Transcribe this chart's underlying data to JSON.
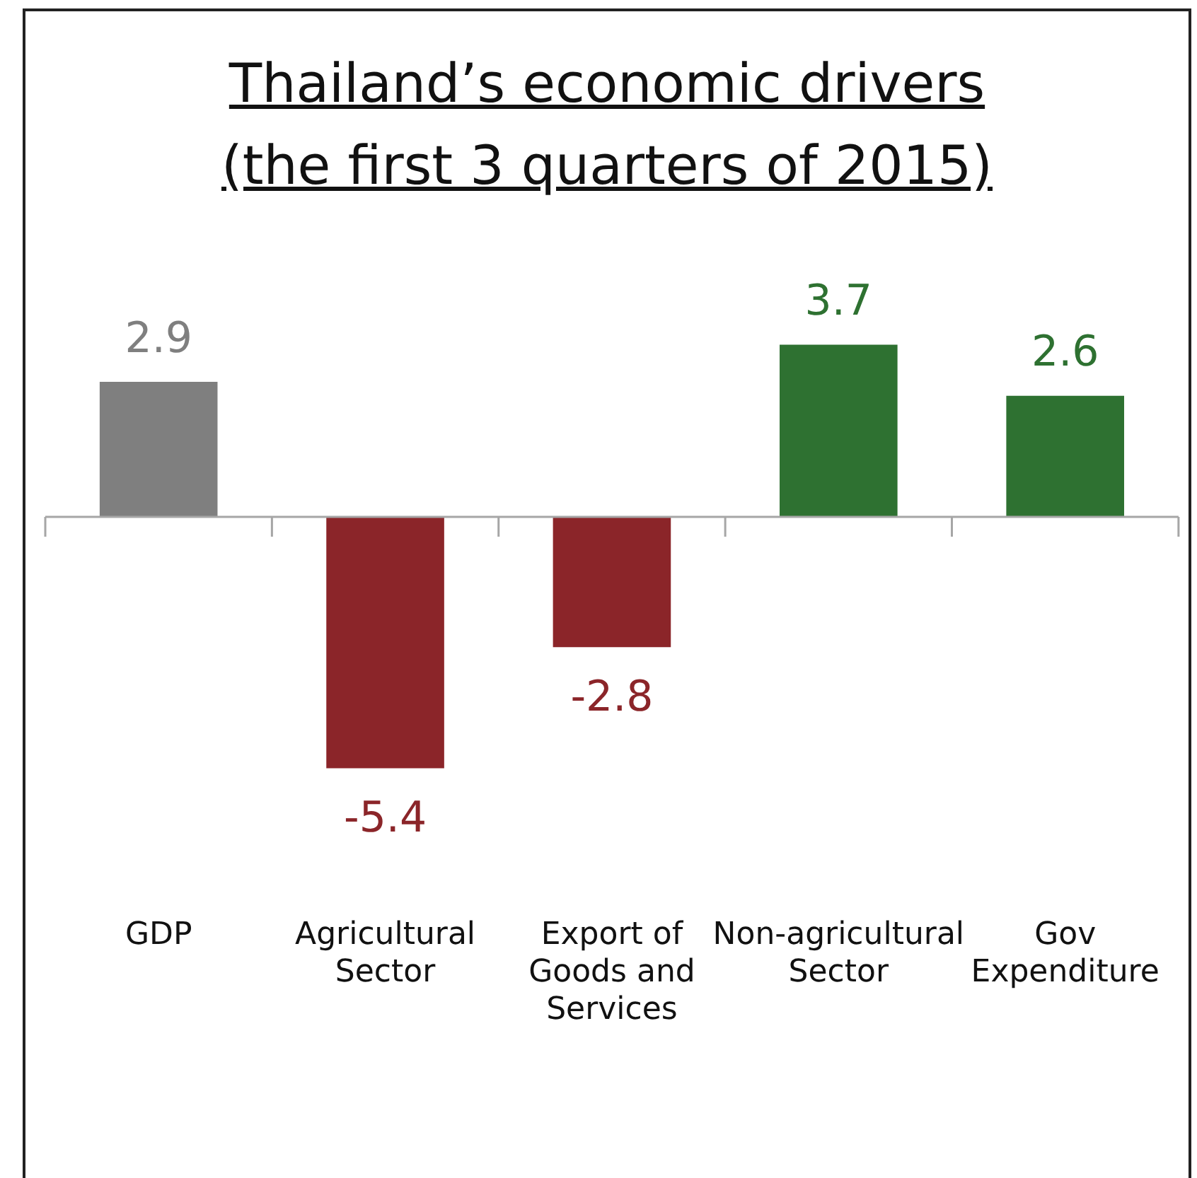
{
  "chart_data": {
    "type": "bar",
    "title": "Thailand’s economic drivers",
    "subtitle": "(the first 3 quarters of 2015)",
    "categories": [
      "GDP",
      "Agricultural Sector",
      "Export of Goods and Services",
      "Non-agricultural Sector",
      "Gov Expenditure"
    ],
    "values": [
      2.9,
      -5.4,
      -2.8,
      3.7,
      2.6
    ],
    "colors": [
      "#7f7f7f",
      "#8b2529",
      "#8b2529",
      "#2e7131",
      "#2e7131"
    ],
    "tick_labels": "x",
    "grid": false,
    "legend": false,
    "data_labels": true
  }
}
